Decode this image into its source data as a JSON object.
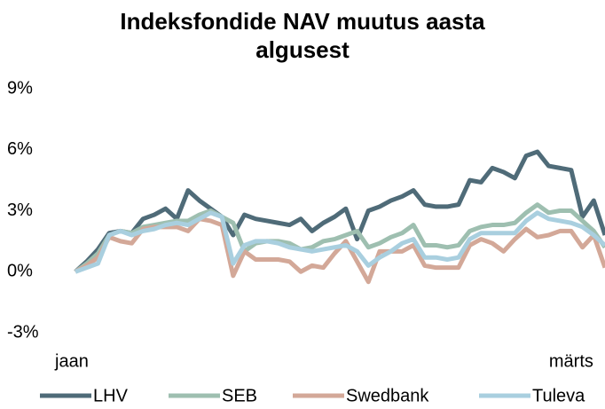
{
  "chart_data": {
    "type": "line",
    "title": "Indeksfondide NAV muutus aasta algusest",
    "categories": [
      "jaan",
      null,
      null,
      null,
      null,
      null,
      null,
      null,
      null,
      null,
      null,
      null,
      null,
      null,
      null,
      null,
      null,
      null,
      null,
      null,
      null,
      null,
      null,
      null,
      null,
      null,
      null,
      null,
      null,
      null,
      null,
      null,
      null,
      null,
      null,
      null,
      null,
      null,
      null,
      null,
      null,
      null,
      null,
      null,
      "märts",
      null,
      null,
      null
    ],
    "ylim": [
      -3,
      9
    ],
    "yticks": [
      {
        "value": -3,
        "label": "-3%"
      },
      {
        "value": 0,
        "label": "0%"
      },
      {
        "value": 3,
        "label": "3%"
      },
      {
        "value": 6,
        "label": "6%"
      },
      {
        "value": 9,
        "label": "9%"
      }
    ],
    "grid": false,
    "legend": "bottom",
    "series": [
      {
        "name": "LHV",
        "color": "#4f6b78",
        "values": [
          0,
          0.5,
          1.1,
          1.9,
          2.0,
          1.9,
          2.6,
          2.8,
          3.1,
          2.6,
          4.0,
          3.5,
          3.1,
          2.7,
          1.8,
          2.8,
          2.6,
          2.5,
          2.4,
          2.3,
          2.6,
          2.0,
          2.4,
          2.7,
          3.1,
          1.6,
          3.0,
          3.2,
          3.5,
          3.7,
          4.0,
          3.3,
          3.2,
          3.2,
          3.3,
          4.5,
          4.4,
          5.1,
          4.9,
          4.6,
          5.7,
          5.9,
          5.2,
          5.1,
          5.0,
          2.7,
          3.5,
          1.8
        ]
      },
      {
        "name": "SEB",
        "color": "#9ebfb0",
        "values": [
          0,
          0.4,
          0.9,
          1.8,
          2.0,
          1.9,
          2.2,
          2.3,
          2.4,
          2.5,
          2.5,
          2.8,
          3.0,
          2.7,
          2.4,
          1.0,
          1.4,
          1.5,
          1.5,
          1.4,
          1.1,
          1.2,
          1.5,
          1.6,
          1.8,
          2.0,
          1.2,
          1.4,
          1.7,
          1.9,
          2.3,
          1.3,
          1.3,
          1.2,
          1.3,
          2.0,
          2.2,
          2.3,
          2.3,
          2.4,
          2.9,
          3.3,
          2.9,
          3.0,
          3.0,
          2.5,
          2.0,
          1.2
        ]
      },
      {
        "name": "Swedbank",
        "color": "#d3a898",
        "values": [
          0,
          0.3,
          0.7,
          1.7,
          1.5,
          1.4,
          2.1,
          2.2,
          2.2,
          2.2,
          2.0,
          2.6,
          2.5,
          2.3,
          -0.2,
          1.0,
          0.6,
          0.6,
          0.6,
          0.5,
          0.0,
          0.3,
          0.2,
          0.9,
          1.5,
          0.5,
          -0.5,
          1.0,
          1.0,
          1.0,
          1.3,
          0.3,
          0.2,
          0.2,
          0.2,
          1.3,
          1.6,
          1.4,
          1.0,
          1.6,
          2.1,
          1.7,
          1.8,
          2.0,
          2.0,
          1.2,
          1.8,
          0.2
        ]
      },
      {
        "name": "Tuleva",
        "color": "#a9cfdf",
        "values": [
          0,
          0.2,
          0.4,
          1.8,
          2.0,
          1.8,
          2.0,
          2.1,
          2.3,
          2.4,
          2.3,
          2.6,
          2.9,
          2.7,
          0.4,
          1.3,
          1.5,
          1.5,
          1.4,
          1.2,
          1.1,
          1.0,
          1.1,
          1.2,
          1.3,
          1.0,
          0.3,
          0.7,
          1.0,
          1.4,
          1.6,
          0.7,
          0.7,
          0.6,
          0.7,
          1.6,
          1.9,
          1.9,
          1.9,
          1.9,
          2.5,
          2.9,
          2.6,
          2.5,
          2.4,
          2.2,
          1.8,
          1.3
        ]
      }
    ]
  }
}
